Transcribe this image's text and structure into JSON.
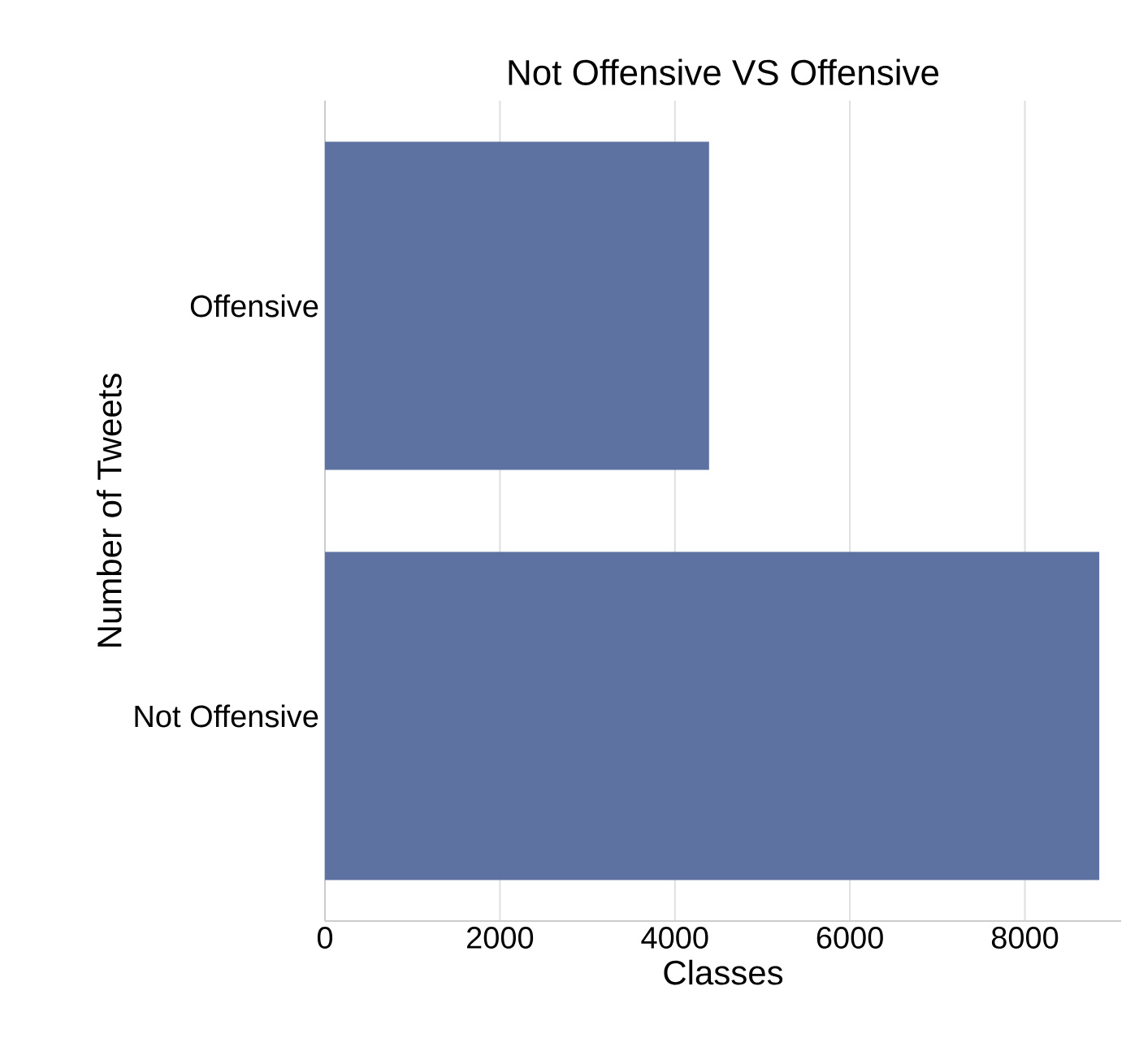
{
  "chart_data": {
    "type": "bar",
    "orientation": "horizontal",
    "title": "Not Offensive VS Offensive",
    "xlabel": "Classes",
    "ylabel": "Number of Tweets",
    "categories": [
      "Offensive",
      "Not Offensive"
    ],
    "values": [
      4390,
      8850
    ],
    "color": "#5d72a0",
    "xlim": [
      0,
      9100
    ],
    "xticks": [
      0,
      2000,
      4000,
      6000,
      8000
    ],
    "grid": "x"
  }
}
